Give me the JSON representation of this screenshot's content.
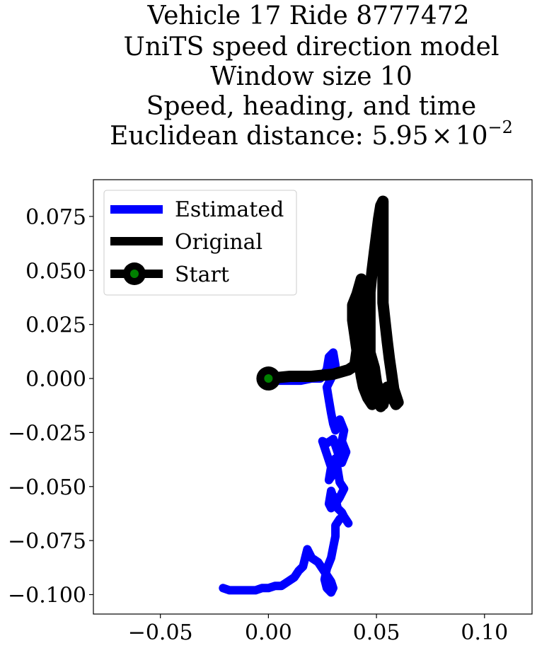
{
  "chart_data": {
    "type": "line",
    "title_lines": [
      "Vehicle 17 Ride 8777472",
      "UniTS speed direction model",
      "Window size 10",
      "Speed, heading, and time"
    ],
    "title_distance_prefix": "Euclidean distance: ",
    "title_distance_mantissa": "5.95",
    "title_distance_times": "×",
    "title_distance_base": "10",
    "title_distance_exponent": "−2",
    "xlim": [
      -0.081,
      0.122
    ],
    "ylim": [
      -0.109,
      0.092
    ],
    "xticks": [
      -0.05,
      0.0,
      0.05,
      0.1
    ],
    "xtick_labels": [
      "−0.05",
      "0.00",
      "0.05",
      "0.10"
    ],
    "yticks": [
      0.075,
      0.05,
      0.025,
      0.0,
      -0.025,
      -0.05,
      -0.075,
      -0.1
    ],
    "ytick_labels": [
      "0.075",
      "0.050",
      "0.025",
      "0.000",
      "−0.025",
      "−0.050",
      "−0.075",
      "−0.100"
    ],
    "grid": false,
    "legend_position": "top-left",
    "series": [
      {
        "name": "Estimated",
        "color": "#0000ff",
        "points": [
          [
            0.0,
            0.0
          ],
          [
            0.005,
            -0.001
          ],
          [
            0.01,
            -0.001
          ],
          [
            0.015,
            -0.001
          ],
          [
            0.02,
            0.0
          ],
          [
            0.024,
            0.0
          ],
          [
            0.027,
            0.004
          ],
          [
            0.028,
            0.01
          ],
          [
            0.03,
            0.012
          ],
          [
            0.031,
            0.006
          ],
          [
            0.029,
            0.0
          ],
          [
            0.027,
            -0.004
          ],
          [
            0.028,
            -0.01
          ],
          [
            0.029,
            -0.016
          ],
          [
            0.03,
            -0.021
          ],
          [
            0.031,
            -0.024
          ],
          [
            0.033,
            -0.019
          ],
          [
            0.035,
            -0.024
          ],
          [
            0.034,
            -0.029
          ],
          [
            0.036,
            -0.034
          ],
          [
            0.034,
            -0.039
          ],
          [
            0.032,
            -0.034
          ],
          [
            0.03,
            -0.028
          ],
          [
            0.027,
            -0.03
          ],
          [
            0.025,
            -0.029
          ],
          [
            0.027,
            -0.035
          ],
          [
            0.029,
            -0.041
          ],
          [
            0.028,
            -0.047
          ],
          [
            0.03,
            -0.044
          ],
          [
            0.031,
            -0.037
          ],
          [
            0.032,
            -0.042
          ],
          [
            0.033,
            -0.048
          ],
          [
            0.035,
            -0.051
          ],
          [
            0.033,
            -0.055
          ],
          [
            0.031,
            -0.058
          ],
          [
            0.029,
            -0.052
          ],
          [
            0.028,
            -0.058
          ],
          [
            0.029,
            -0.06
          ],
          [
            0.031,
            -0.055
          ],
          [
            0.032,
            -0.06
          ],
          [
            0.034,
            -0.062
          ],
          [
            0.035,
            -0.064
          ],
          [
            0.037,
            -0.067
          ],
          [
            0.035,
            -0.064
          ],
          [
            0.033,
            -0.065
          ],
          [
            0.031,
            -0.068
          ],
          [
            0.031,
            -0.073
          ],
          [
            0.03,
            -0.078
          ],
          [
            0.029,
            -0.083
          ],
          [
            0.027,
            -0.088
          ],
          [
            0.026,
            -0.093
          ],
          [
            0.027,
            -0.097
          ],
          [
            0.029,
            -0.099
          ],
          [
            0.03,
            -0.097
          ],
          [
            0.029,
            -0.094
          ],
          [
            0.027,
            -0.091
          ],
          [
            0.025,
            -0.088
          ],
          [
            0.023,
            -0.085
          ],
          [
            0.02,
            -0.083
          ],
          [
            0.018,
            -0.079
          ],
          [
            0.017,
            -0.083
          ],
          [
            0.016,
            -0.087
          ],
          [
            0.014,
            -0.089
          ],
          [
            0.012,
            -0.092
          ],
          [
            0.009,
            -0.094
          ],
          [
            0.006,
            -0.096
          ],
          [
            0.003,
            -0.096
          ],
          [
            0.0,
            -0.097
          ],
          [
            -0.003,
            -0.097
          ],
          [
            -0.006,
            -0.098
          ],
          [
            -0.01,
            -0.098
          ],
          [
            -0.014,
            -0.098
          ],
          [
            -0.018,
            -0.098
          ],
          [
            -0.021,
            -0.097
          ]
        ]
      },
      {
        "name": "Original",
        "color": "#000000",
        "points": [
          [
            0.0,
            0.0
          ],
          [
            0.01,
            0.001
          ],
          [
            0.02,
            0.001
          ],
          [
            0.03,
            0.002
          ],
          [
            0.037,
            0.004
          ],
          [
            0.04,
            0.006
          ],
          [
            0.041,
            0.013
          ],
          [
            0.04,
            0.02
          ],
          [
            0.039,
            0.027
          ],
          [
            0.039,
            0.034
          ],
          [
            0.041,
            0.039
          ],
          [
            0.043,
            0.046
          ],
          [
            0.044,
            0.044
          ],
          [
            0.044,
            0.038
          ],
          [
            0.043,
            0.031
          ],
          [
            0.043,
            0.023
          ],
          [
            0.042,
            0.016
          ],
          [
            0.042,
            0.008
          ],
          [
            0.043,
            0.001
          ],
          [
            0.044,
            -0.004
          ],
          [
            0.046,
            -0.009
          ],
          [
            0.048,
            -0.012
          ],
          [
            0.049,
            -0.008
          ],
          [
            0.048,
            -0.002
          ],
          [
            0.047,
            0.005
          ],
          [
            0.046,
            0.01
          ],
          [
            0.045,
            0.014
          ],
          [
            0.046,
            0.01
          ],
          [
            0.048,
            0.003
          ],
          [
            0.05,
            -0.004
          ],
          [
            0.051,
            -0.01
          ],
          [
            0.052,
            -0.013
          ],
          [
            0.052,
            -0.008
          ],
          [
            0.05,
            -0.002
          ],
          [
            0.049,
            0.005
          ],
          [
            0.047,
            0.012
          ],
          [
            0.047,
            0.021
          ],
          [
            0.047,
            0.03
          ],
          [
            0.047,
            0.04
          ],
          [
            0.048,
            0.05
          ],
          [
            0.049,
            0.058
          ],
          [
            0.05,
            0.066
          ],
          [
            0.051,
            0.074
          ],
          [
            0.052,
            0.08
          ],
          [
            0.053,
            0.082
          ],
          [
            0.053,
            0.076
          ],
          [
            0.053,
            0.066
          ],
          [
            0.053,
            0.055
          ],
          [
            0.053,
            0.045
          ],
          [
            0.053,
            0.035
          ],
          [
            0.054,
            0.026
          ],
          [
            0.055,
            0.017
          ],
          [
            0.056,
            0.009
          ],
          [
            0.057,
            0.002
          ],
          [
            0.058,
            -0.005
          ],
          [
            0.06,
            -0.011
          ],
          [
            0.059,
            -0.012
          ],
          [
            0.057,
            -0.008
          ],
          [
            0.055,
            -0.004
          ],
          [
            0.054,
            -0.008
          ],
          [
            0.053,
            -0.012
          ],
          [
            0.051,
            -0.01
          ],
          [
            0.05,
            -0.005
          ],
          [
            0.049,
            0.002
          ]
        ]
      },
      {
        "name": "Start",
        "color": "#000000",
        "marker_face": "#008000",
        "points": [
          [
            0.0,
            0.0
          ]
        ]
      }
    ]
  }
}
